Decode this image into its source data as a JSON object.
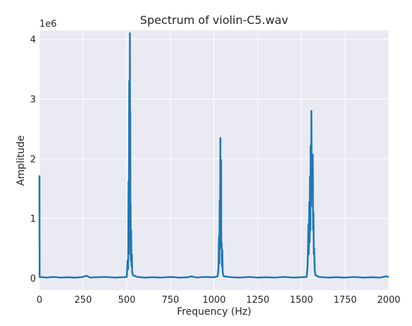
{
  "chart_data": {
    "type": "line",
    "title": "Spectrum of violin-C5.wav",
    "xlabel": "Frequency (Hz)",
    "ylabel": "Amplitude",
    "y_offset_label": "1e6",
    "xlim": [
      0,
      2000
    ],
    "ylim": [
      -0.2,
      4.15
    ],
    "x_ticks": [
      0,
      250,
      500,
      750,
      1000,
      1250,
      1500,
      1750,
      2000
    ],
    "x_tick_labels": [
      "0",
      "250",
      "500",
      "750",
      "1000",
      "1250",
      "1500",
      "1750",
      "2000"
    ],
    "y_ticks": [
      0,
      1,
      2,
      3,
      4
    ],
    "y_tick_labels": [
      "0",
      "1",
      "2",
      "3",
      "4"
    ],
    "grid": true,
    "line_color": "#1f77b4",
    "background_color": "#eaeaf2",
    "series": [
      {
        "points": [
          [
            0,
            1.72
          ],
          [
            1,
            0.02
          ],
          [
            40,
            0.01
          ],
          [
            80,
            0.02
          ],
          [
            120,
            0.01
          ],
          [
            160,
            0.015
          ],
          [
            200,
            0.01
          ],
          [
            240,
            0.015
          ],
          [
            270,
            0.04
          ],
          [
            290,
            0.01
          ],
          [
            330,
            0.015
          ],
          [
            380,
            0.02
          ],
          [
            430,
            0.01
          ],
          [
            470,
            0.015
          ],
          [
            500,
            0.02
          ],
          [
            505,
            0.3
          ],
          [
            508,
            0.15
          ],
          [
            510,
            1.62
          ],
          [
            512,
            0.4
          ],
          [
            514,
            3.3
          ],
          [
            516,
            0.9
          ],
          [
            518,
            4.1
          ],
          [
            519,
            1.0
          ],
          [
            520,
            2.8
          ],
          [
            521,
            0.6
          ],
          [
            522,
            1.25
          ],
          [
            523,
            0.3
          ],
          [
            525,
            0.8
          ],
          [
            527,
            0.2
          ],
          [
            529,
            0.4
          ],
          [
            531,
            0.1
          ],
          [
            535,
            0.05
          ],
          [
            560,
            0.02
          ],
          [
            600,
            0.01
          ],
          [
            650,
            0.015
          ],
          [
            700,
            0.01
          ],
          [
            750,
            0.02
          ],
          [
            800,
            0.01
          ],
          [
            850,
            0.015
          ],
          [
            870,
            0.03
          ],
          [
            900,
            0.01
          ],
          [
            950,
            0.02
          ],
          [
            1000,
            0.015
          ],
          [
            1020,
            0.03
          ],
          [
            1025,
            0.15
          ],
          [
            1028,
            0.7
          ],
          [
            1030,
            0.25
          ],
          [
            1032,
            1.3
          ],
          [
            1034,
            0.5
          ],
          [
            1036,
            2.35
          ],
          [
            1037,
            0.8
          ],
          [
            1038,
            1.6
          ],
          [
            1039,
            0.6
          ],
          [
            1040,
            1.98
          ],
          [
            1041,
            0.5
          ],
          [
            1043,
            0.6
          ],
          [
            1045,
            0.2
          ],
          [
            1047,
            0.47
          ],
          [
            1049,
            0.1
          ],
          [
            1055,
            0.03
          ],
          [
            1100,
            0.015
          ],
          [
            1150,
            0.01
          ],
          [
            1200,
            0.02
          ],
          [
            1250,
            0.01
          ],
          [
            1300,
            0.015
          ],
          [
            1350,
            0.01
          ],
          [
            1400,
            0.02
          ],
          [
            1450,
            0.01
          ],
          [
            1500,
            0.015
          ],
          [
            1530,
            0.02
          ],
          [
            1535,
            0.2
          ],
          [
            1538,
            0.5
          ],
          [
            1540,
            0.9
          ],
          [
            1542,
            0.4
          ],
          [
            1545,
            1.27
          ],
          [
            1547,
            0.6
          ],
          [
            1549,
            1.7
          ],
          [
            1551,
            0.8
          ],
          [
            1553,
            2.22
          ],
          [
            1555,
            1.2
          ],
          [
            1557,
            2.8
          ],
          [
            1559,
            1.4
          ],
          [
            1561,
            2.0
          ],
          [
            1563,
            1.5
          ],
          [
            1565,
            2.07
          ],
          [
            1567,
            0.8
          ],
          [
            1569,
            1.1
          ],
          [
            1571,
            0.4
          ],
          [
            1573,
            0.5
          ],
          [
            1576,
            0.15
          ],
          [
            1580,
            0.05
          ],
          [
            1600,
            0.02
          ],
          [
            1650,
            0.01
          ],
          [
            1700,
            0.015
          ],
          [
            1750,
            0.01
          ],
          [
            1800,
            0.02
          ],
          [
            1850,
            0.01
          ],
          [
            1900,
            0.015
          ],
          [
            1950,
            0.01
          ],
          [
            1985,
            0.03
          ],
          [
            2000,
            0.02
          ]
        ]
      }
    ]
  }
}
